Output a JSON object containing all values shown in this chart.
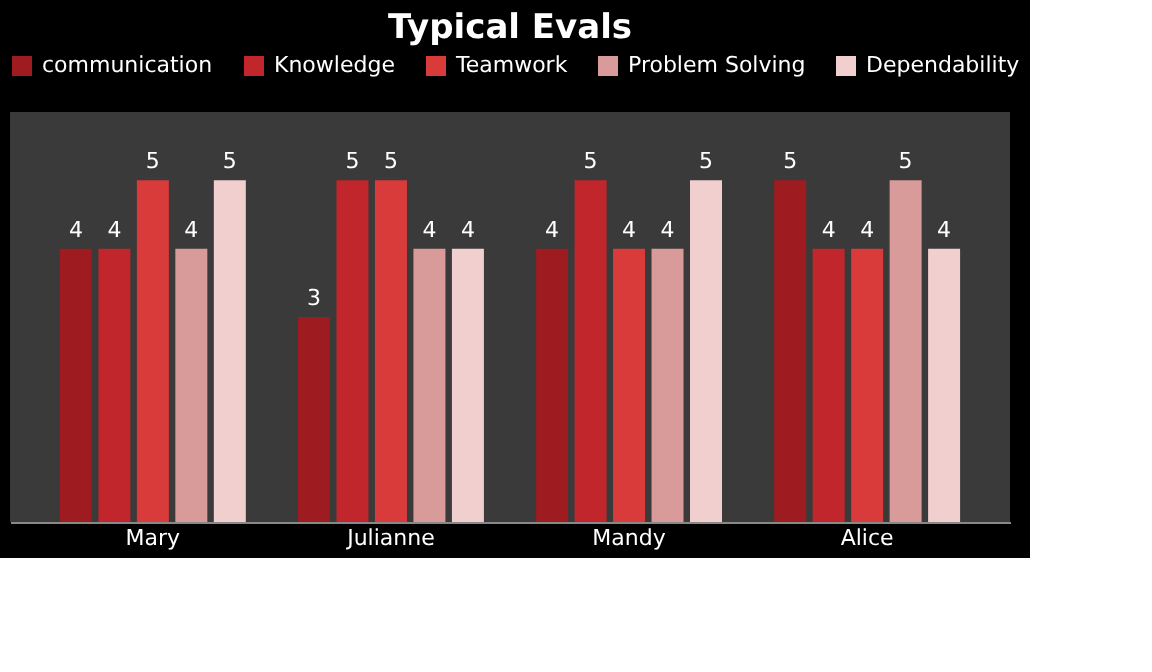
{
  "chart_data": {
    "type": "bar",
    "title": "Typical Evals",
    "categories": [
      "Mary",
      "Julianne",
      "Mandy",
      "Alice"
    ],
    "series": [
      {
        "name": "communication",
        "color": "#9e1b1f",
        "values": [
          4,
          3,
          4,
          5
        ]
      },
      {
        "name": "Knowledge",
        "color": "#c1262c",
        "values": [
          4,
          5,
          5,
          4
        ]
      },
      {
        "name": "Teamwork",
        "color": "#d93b3b",
        "values": [
          5,
          5,
          4,
          4
        ]
      },
      {
        "name": "Problem Solving",
        "color": "#d99a9a",
        "values": [
          4,
          4,
          4,
          5
        ]
      },
      {
        "name": "Dependability",
        "color": "#f2cfcf",
        "values": [
          5,
          4,
          5,
          4
        ]
      }
    ],
    "ylim": [
      0,
      6
    ],
    "data_labels": true,
    "legend": "top",
    "grid": false
  }
}
